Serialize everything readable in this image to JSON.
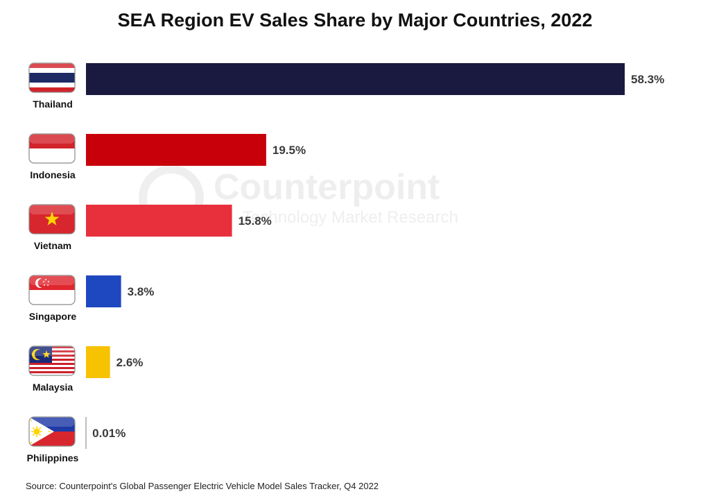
{
  "chart_data": {
    "type": "bar",
    "orientation": "horizontal",
    "title": "SEA Region EV Sales Share by Major Countries, 2022",
    "categories": [
      "Thailand",
      "Indonesia",
      "Vietnam",
      "Singapore",
      "Malaysia",
      "Philippines"
    ],
    "values": [
      58.3,
      19.5,
      15.8,
      3.8,
      2.6,
      0.01
    ],
    "value_labels": [
      "58.3%",
      "19.5%",
      "15.8%",
      "3.8%",
      "2.6%",
      "0.01%"
    ],
    "colors": [
      "#1a1a40",
      "#c8000a",
      "#e8303d",
      "#1e48c0",
      "#f7c200",
      "#9a9a9a"
    ],
    "xlim": [
      0,
      58.3
    ],
    "grid": false,
    "legend": "none"
  },
  "watermark": {
    "brand": "Counterpoint",
    "tagline": "Technology Market Research"
  },
  "source_note": "Source: Counterpoint's Global Passenger Electric Vehicle Model Sales Tracker, Q4 2022"
}
